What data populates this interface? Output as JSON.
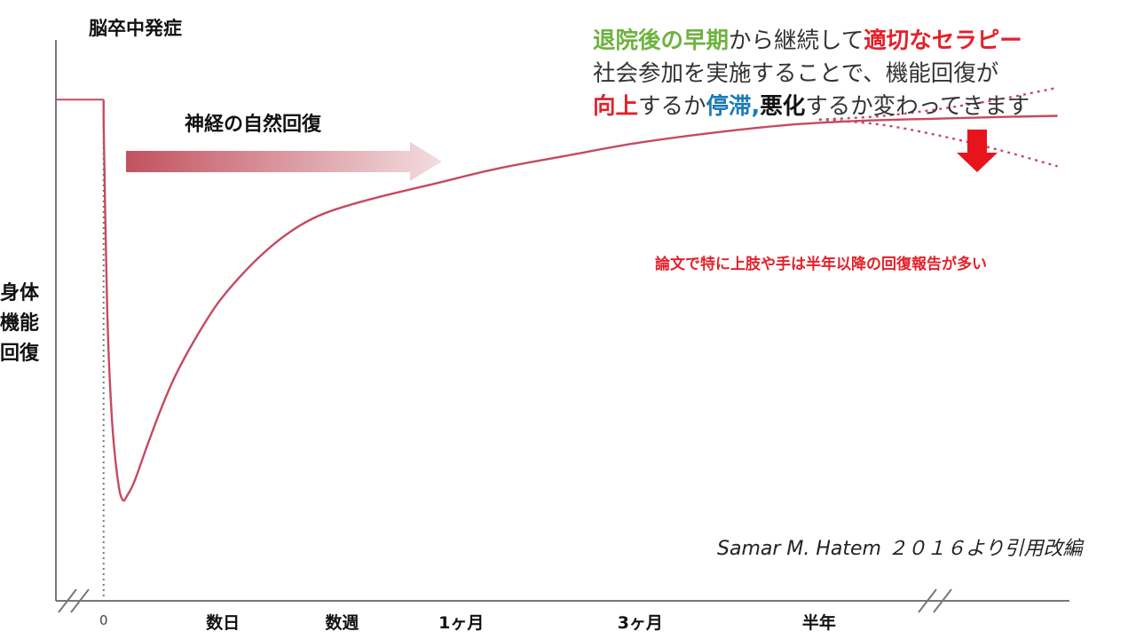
{
  "labels": {
    "onset": "脳卒中発症",
    "natural_recovery": "神経の自然回復",
    "y_axis": [
      "身体",
      "機能",
      "回復"
    ],
    "note": "論文で特に上肢や手は半年以降の回復報告が多い",
    "citation": "Samar M. Hatem ２０１６より引用改編"
  },
  "message": {
    "line1": [
      {
        "text": "退院後の早期",
        "color": "#6db33f",
        "bold": true
      },
      {
        "text": "から継続して",
        "color": "#333333",
        "bold": false
      },
      {
        "text": "適切なセラピー",
        "color": "#e4202a",
        "bold": true
      }
    ],
    "line2": [
      {
        "text": "社会参加を実施することで、機能回復が",
        "color": "#333333",
        "bold": false
      }
    ],
    "line3": [
      {
        "text": "向上",
        "color": "#e4202a",
        "bold": true
      },
      {
        "text": "するか",
        "color": "#333333",
        "bold": false
      },
      {
        "text": "停滞,",
        "color": "#1a7ab8",
        "bold": true
      },
      {
        "text": "悪化",
        "color": "#111111",
        "bold": true
      },
      {
        "text": "するか変わってきます",
        "color": "#333333",
        "bold": false
      }
    ]
  },
  "colors": {
    "curve": "#c54a62",
    "arrow_start": "#c1525f",
    "arrow_end": "#f3dde0",
    "down_arrow": "#e8141b",
    "axis": "#777777"
  },
  "chart_data": {
    "type": "line",
    "x_ticks": [
      {
        "label": "0",
        "x": 0
      },
      {
        "label": "数日",
        "x": 1
      },
      {
        "label": "数週",
        "x": 2
      },
      {
        "label": "1ヶ月",
        "x": 3
      },
      {
        "label": "3ヶ月",
        "x": 4.5
      },
      {
        "label": "半年",
        "x": 6
      }
    ],
    "xlim": [
      -0.4,
      8.1
    ],
    "ylim": [
      0,
      100
    ],
    "pre_onset_level": 94,
    "series": [
      {
        "style": "solid",
        "x": [
          0,
          0.03,
          0.07,
          0.12,
          0.16,
          0.2,
          0.26,
          0.36,
          0.48,
          0.6,
          0.75,
          0.95,
          1.15,
          1.35,
          1.55,
          1.75,
          1.95,
          2.3,
          2.8,
          3.3,
          3.9,
          4.5,
          5.2,
          5.8,
          6.4,
          7.0,
          7.6,
          8.0
        ],
        "y": [
          90,
          50,
          27,
          14,
          10,
          11,
          14,
          21,
          29,
          36,
          43,
          51,
          57,
          62,
          66,
          69,
          71,
          73.5,
          76.5,
          79.5,
          82.3,
          85,
          87.3,
          88.8,
          89.6,
          90,
          90.4,
          90.6
        ]
      },
      {
        "name": "",
        "style": "dotted",
        "x": [
          6.0,
          6.5,
          7.0,
          7.5,
          8.0
        ],
        "y": [
          89.8,
          90.5,
          92,
          94,
          96.5
        ]
      },
      {
        "name": "",
        "style": "dotted",
        "x": [
          6.0,
          6.5,
          7.0,
          7.5,
          8.0
        ],
        "y": [
          89.8,
          88.8,
          86.5,
          83.5,
          80
        ]
      }
    ],
    "onset_line_x": 0,
    "annotations": [
      "神経の自然回復",
      "論文で特に上肢や手は半年以降の回復報告が多い"
    ]
  }
}
